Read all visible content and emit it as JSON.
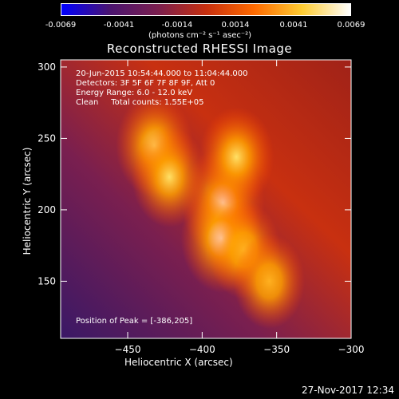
{
  "colorbar": {
    "ticks": [
      "-0.0069",
      "-0.0041",
      "-0.0014",
      "0.0014",
      "0.0041",
      "0.0069"
    ],
    "units": "(photons cm⁻² s⁻¹ asec⁻²)",
    "range": [
      -0.0069,
      0.0069
    ],
    "colors": [
      "#0000ff",
      "#4a1470",
      "#7a1f4f",
      "#c62f0f",
      "#ff6a00",
      "#ffcc33",
      "#ffffff"
    ]
  },
  "annotations": {
    "time": "20-Jun-2015 10:54:44.000 to 11:04:44.000",
    "detectors": "Detectors: 3F 5F 6F 7F 8F 9F, Att 0",
    "energy": "Energy Range: 6.0 - 12.0 keV",
    "clean": "Clean     Total counts: 1.55E+05",
    "peak": "Position of Peak = [-386,205]"
  },
  "timestamp": "27-Nov-2017 12:34",
  "chart_data": {
    "type": "heatmap",
    "title": "Reconstructed RHESSI Image",
    "xlabel": "Heliocentric X (arcsec)",
    "ylabel": "Heliocentric Y (arcsec)",
    "xlim": [
      -495,
      -300
    ],
    "ylim": [
      110,
      305
    ],
    "xticks": [
      -450,
      -400,
      -350,
      -300
    ],
    "yticks": [
      150,
      200,
      250,
      300
    ],
    "peak": [
      -386,
      205
    ],
    "sources": [
      {
        "x": -386,
        "y": 205,
        "value": 0.0069
      },
      {
        "x": -387,
        "y": 180,
        "value": 0.0063
      },
      {
        "x": -432,
        "y": 245,
        "value": 0.005
      },
      {
        "x": -422,
        "y": 223,
        "value": 0.0044
      },
      {
        "x": -377,
        "y": 237,
        "value": 0.0043
      },
      {
        "x": -372,
        "y": 172,
        "value": 0.0037
      },
      {
        "x": -355,
        "y": 150,
        "value": 0.0031
      }
    ]
  }
}
